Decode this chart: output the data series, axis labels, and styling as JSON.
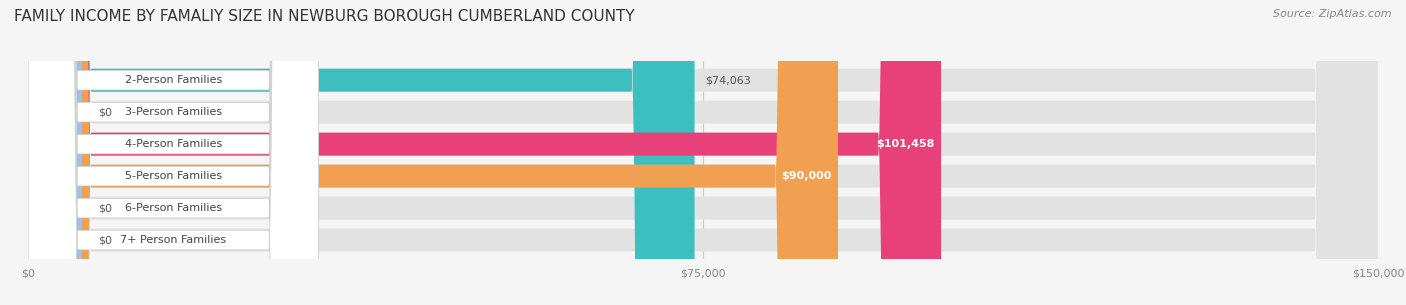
{
  "title": "FAMILY INCOME BY FAMALIY SIZE IN NEWBURG BOROUGH CUMBERLAND COUNTY",
  "source_text": "Source: ZipAtlas.com",
  "categories": [
    "2-Person Families",
    "3-Person Families",
    "4-Person Families",
    "5-Person Families",
    "6-Person Families",
    "7+ Person Families"
  ],
  "values": [
    74063,
    0,
    101458,
    90000,
    0,
    0
  ],
  "bar_colors": [
    "#3dbfbf",
    "#a8a8d8",
    "#e8417a",
    "#f0a050",
    "#f0a0a0",
    "#a0c0e0"
  ],
  "xlim": [
    0,
    150000
  ],
  "xtick_values": [
    0,
    75000,
    150000
  ],
  "xtick_labels": [
    "$0",
    "$75,000",
    "$150,000"
  ],
  "background_color": "#f5f5f5",
  "bar_bg_color": "#e2e2e2",
  "title_fontsize": 11,
  "source_fontsize": 8,
  "label_fontsize": 8,
  "value_fontsize": 8
}
